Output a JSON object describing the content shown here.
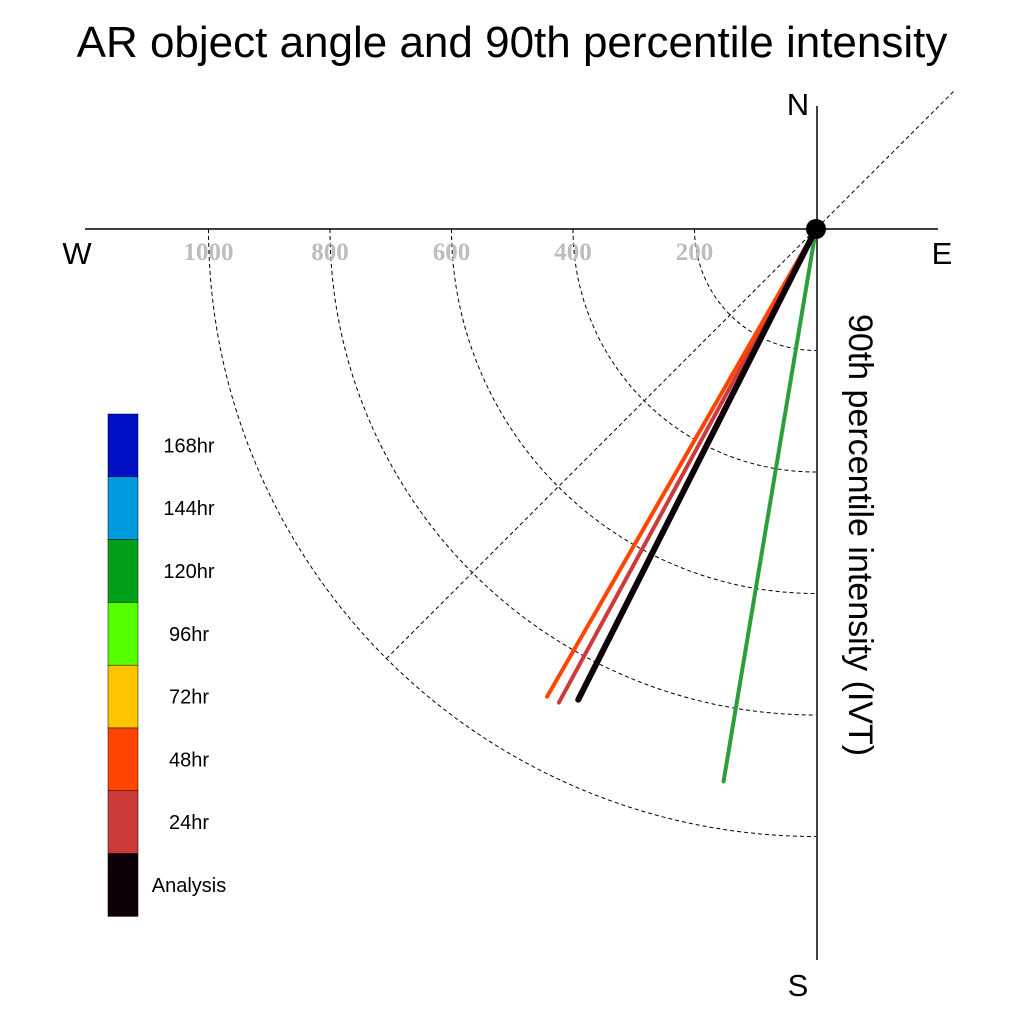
{
  "chart_data": {
    "type": "polar-vector",
    "title": "AR object angle and 90th percentile intensity",
    "radial_label": "90th percentile intensity (IVT)",
    "compass": {
      "north": "N",
      "south": "S",
      "east": "E",
      "west": "W"
    },
    "radial_ticks": [
      200,
      400,
      600,
      800,
      1000
    ],
    "radial_tick_labels": [
      "200",
      "400",
      "600",
      "800",
      "1000"
    ],
    "rmax": 1200,
    "grid": true,
    "legend_position": "left",
    "legend": [
      {
        "label": "168hr",
        "color": "#0010c4"
      },
      {
        "label": "144hr",
        "color": "#009ade"
      },
      {
        "label": "120hr",
        "color": "#00a01a"
      },
      {
        "label": "96hr",
        "color": "#55ff00"
      },
      {
        "label": "72hr",
        "color": "#ffc400"
      },
      {
        "label": "48hr",
        "color": "#ff4500"
      },
      {
        "label": "24hr",
        "color": "#cc3a3a"
      },
      {
        "label": "Analysis",
        "color": "#0d0008"
      }
    ],
    "vectors": [
      {
        "lead": "120hr",
        "color": "#2e9e3a",
        "angle_deg": 189.5,
        "intensity": 922
      },
      {
        "lead": "24hr",
        "color": "#cc3a3a",
        "angle_deg": 208.5,
        "intensity": 887
      },
      {
        "lead": "48hr",
        "color": "#ff4500",
        "angle_deg": 209.9,
        "intensity": 888
      },
      {
        "lead": "Analysis",
        "color": "#0d0008",
        "angle_deg": 206.8,
        "intensity": 868
      }
    ]
  }
}
